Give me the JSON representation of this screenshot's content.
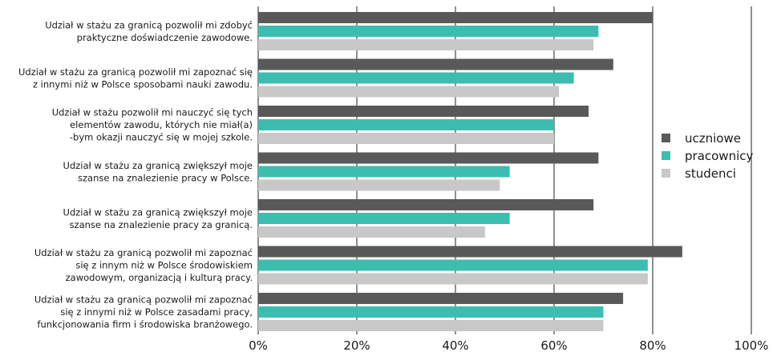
{
  "chart_data": {
    "type": "bar",
    "orientation": "horizontal",
    "categories": [
      [
        "Udział w stażu za granicą pozwolił mi zdobyć",
        "praktyczne doświadczenie zawodowe."
      ],
      [
        "Udział w stażu za granicą pozwolił mi zapoznać się",
        "z innymi niż w Polsce sposobami nauki zawodu."
      ],
      [
        "Udział w stażu pozwolił mi nauczyć się tych",
        "elementów zawodu, których nie miał(a)",
        "-bym okazji nauczyć się w mojej szkole."
      ],
      [
        "Udział w stażu za granicą zwiększył moje",
        "szanse na znalezienie pracy w Polsce."
      ],
      [
        "Udział w stażu za granicą zwiększył moje",
        "szanse na znalezienie pracy za granicą."
      ],
      [
        "Udział w stażu za granicą pozwolił mi zapoznać",
        "się z innym niż w Polsce środowiskiem",
        "zawodowym, organizacją i kulturą pracy."
      ],
      [
        "Udział w stażu za granicą pozwolił mi zapoznać",
        "się z innymi niż w Polsce zasadami pracy,",
        "funkcjonowania firm i środowiska branżowego."
      ]
    ],
    "series": [
      {
        "name": "uczniowe",
        "color": "#595959",
        "values": [
          80,
          72,
          67,
          69,
          68,
          86,
          74
        ]
      },
      {
        "name": "pracownicy",
        "color": "#3dbdb0",
        "values": [
          69,
          64,
          60,
          51,
          51,
          79,
          70
        ]
      },
      {
        "name": "studenci",
        "color": "#c8c8c8",
        "values": [
          68,
          61,
          60,
          49,
          46,
          79,
          70
        ]
      }
    ],
    "xlim": [
      0,
      100
    ],
    "xticks": [
      0,
      20,
      40,
      60,
      80,
      100
    ],
    "xtick_labels": [
      "0%",
      "20%",
      "40%",
      "60%",
      "80%",
      "100%"
    ],
    "grid": "vertical",
    "legend": "right"
  }
}
